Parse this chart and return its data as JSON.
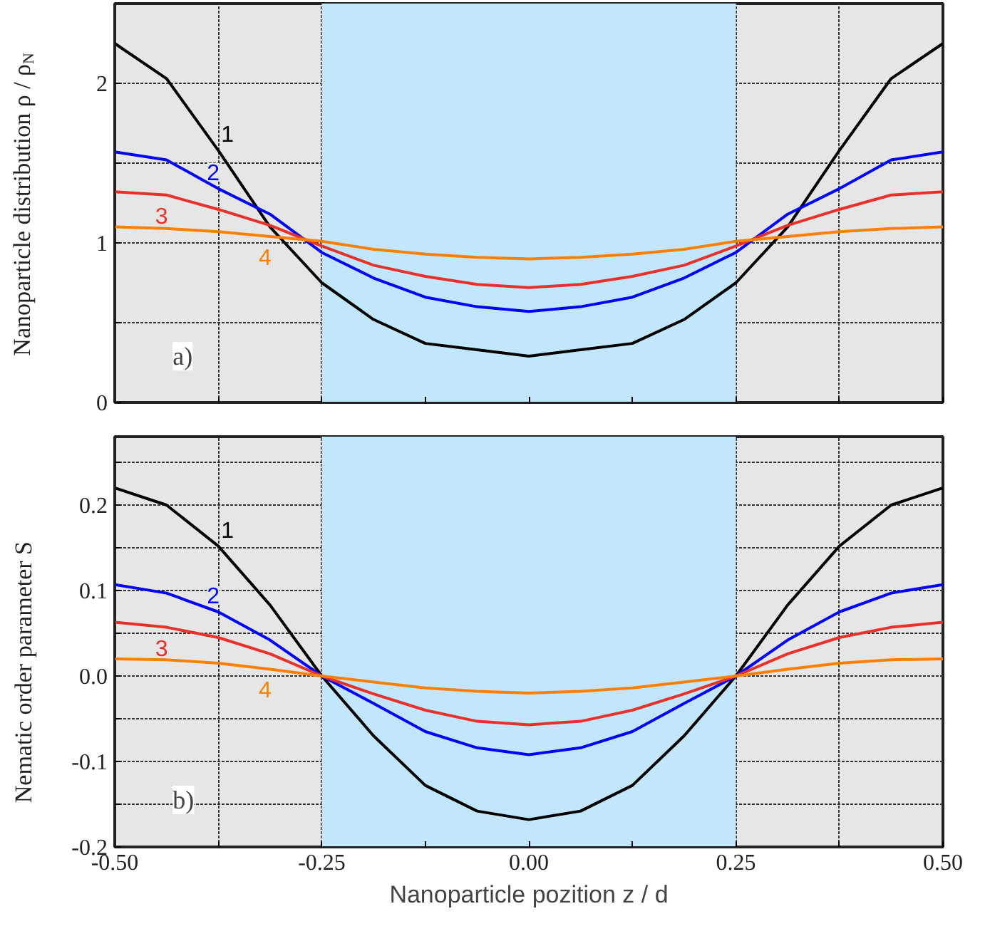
{
  "chart_data": [
    {
      "type": "line",
      "ylabel": "Nanoparticle distribution ρ / ρ$_{N}$",
      "annotations": [
        "a)"
      ],
      "x": [
        -0.5,
        -0.4375,
        -0.375,
        -0.3125,
        -0.25,
        -0.1875,
        -0.125,
        -0.0625,
        0,
        0.0625,
        0.125,
        0.1875,
        0.25,
        0.3125,
        0.375,
        0.4375,
        0.5
      ],
      "series": [
        {
          "name": "1",
          "color": "#000000",
          "values": [
            2.25,
            2.03,
            1.58,
            1.1,
            0.75,
            0.52,
            0.37,
            0.33,
            0.29,
            0.33,
            0.37,
            0.52,
            0.75,
            1.1,
            1.58,
            2.03,
            2.25
          ]
        },
        {
          "name": "2",
          "color": "#0000ff",
          "values": [
            1.57,
            1.52,
            1.34,
            1.18,
            0.94,
            0.78,
            0.66,
            0.6,
            0.57,
            0.6,
            0.66,
            0.78,
            0.94,
            1.18,
            1.34,
            1.52,
            1.57
          ]
        },
        {
          "name": "3",
          "color": "#e8312a",
          "values": [
            1.32,
            1.3,
            1.21,
            1.11,
            0.98,
            0.86,
            0.79,
            0.74,
            0.72,
            0.74,
            0.79,
            0.86,
            0.98,
            1.11,
            1.21,
            1.3,
            1.32
          ]
        },
        {
          "name": "4",
          "color": "#ff8000",
          "values": [
            1.1,
            1.09,
            1.07,
            1.04,
            1.01,
            0.96,
            0.93,
            0.91,
            0.9,
            0.91,
            0.93,
            0.96,
            1.01,
            1.04,
            1.07,
            1.09,
            1.1
          ]
        }
      ],
      "xlim": [
        -0.5,
        0.5
      ],
      "xticks": [
        -0.5,
        -0.375,
        -0.25,
        -0.125,
        0,
        0.125,
        0.25,
        0.375,
        0.5
      ],
      "ylim": [
        0,
        2.5
      ],
      "yticks": [
        0,
        {
          "value": 0.5,
          "label": null
        },
        1,
        {
          "value": 1.5,
          "label": null
        },
        2
      ],
      "tick_labels": "y",
      "grid": true,
      "line_style": "solid",
      "bands": [
        {
          "axis": "x",
          "from": -0.25,
          "to": 0.25,
          "color": "#c2e6fb"
        }
      ]
    },
    {
      "type": "line",
      "xlabel": "Nanoparticle pozition z / d",
      "ylabel": "Nematic order parameter S",
      "annotations": [
        "b)"
      ],
      "x": [
        -0.5,
        -0.4375,
        -0.375,
        -0.3125,
        -0.25,
        -0.1875,
        -0.125,
        -0.0625,
        0,
        0.0625,
        0.125,
        0.1875,
        0.25,
        0.3125,
        0.375,
        0.4375,
        0.5
      ],
      "series": [
        {
          "name": "1",
          "color": "#000000",
          "values": [
            0.22,
            0.2,
            0.152,
            0.083,
            0,
            -0.07,
            -0.128,
            -0.158,
            -0.168,
            -0.158,
            -0.128,
            -0.07,
            0,
            0.083,
            0.152,
            0.2,
            0.22
          ]
        },
        {
          "name": "2",
          "color": "#0000ff",
          "values": [
            0.107,
            0.097,
            0.075,
            0.042,
            0,
            -0.032,
            -0.065,
            -0.084,
            -0.092,
            -0.084,
            -0.065,
            -0.032,
            0,
            0.042,
            0.075,
            0.097,
            0.107
          ]
        },
        {
          "name": "3",
          "color": "#e8312a",
          "values": [
            0.063,
            0.057,
            0.045,
            0.026,
            0,
            -0.021,
            -0.04,
            -0.053,
            -0.057,
            -0.053,
            -0.04,
            -0.021,
            0,
            0.026,
            0.045,
            0.057,
            0.063
          ]
        },
        {
          "name": "4",
          "color": "#ff8000",
          "values": [
            0.02,
            0.019,
            0.015,
            0.008,
            0,
            -0.007,
            -0.014,
            -0.018,
            -0.02,
            -0.018,
            -0.014,
            -0.007,
            0,
            0.008,
            0.015,
            0.019,
            0.02
          ]
        }
      ],
      "xlim": [
        -0.5,
        0.5
      ],
      "xticks": [
        {
          "value": -0.5,
          "label": "-0.50"
        },
        {
          "value": -0.375,
          "label": null
        },
        {
          "value": -0.25,
          "label": "-0.25"
        },
        {
          "value": -0.125,
          "label": null
        },
        {
          "value": 0,
          "label": "0.00"
        },
        {
          "value": 0.125,
          "label": null
        },
        {
          "value": 0.25,
          "label": "0.25"
        },
        {
          "value": 0.375,
          "label": null
        },
        {
          "value": 0.5,
          "label": "0.50"
        }
      ],
      "ylim": [
        -0.2,
        0.28
      ],
      "yticks": [
        -0.2,
        {
          "value": -0.15,
          "label": null
        },
        -0.1,
        {
          "value": -0.05,
          "label": null
        },
        {
          "value": 0,
          "label": "0.0"
        },
        {
          "value": 0.05,
          "label": null
        },
        0.1,
        {
          "value": 0.15,
          "label": null
        },
        0.2,
        {
          "value": 0.25,
          "label": null
        }
      ],
      "grid": true,
      "line_style": "solid",
      "bands": [
        {
          "axis": "x",
          "from": -0.25,
          "to": 0.25,
          "color": "#c2e6fb"
        }
      ]
    }
  ]
}
